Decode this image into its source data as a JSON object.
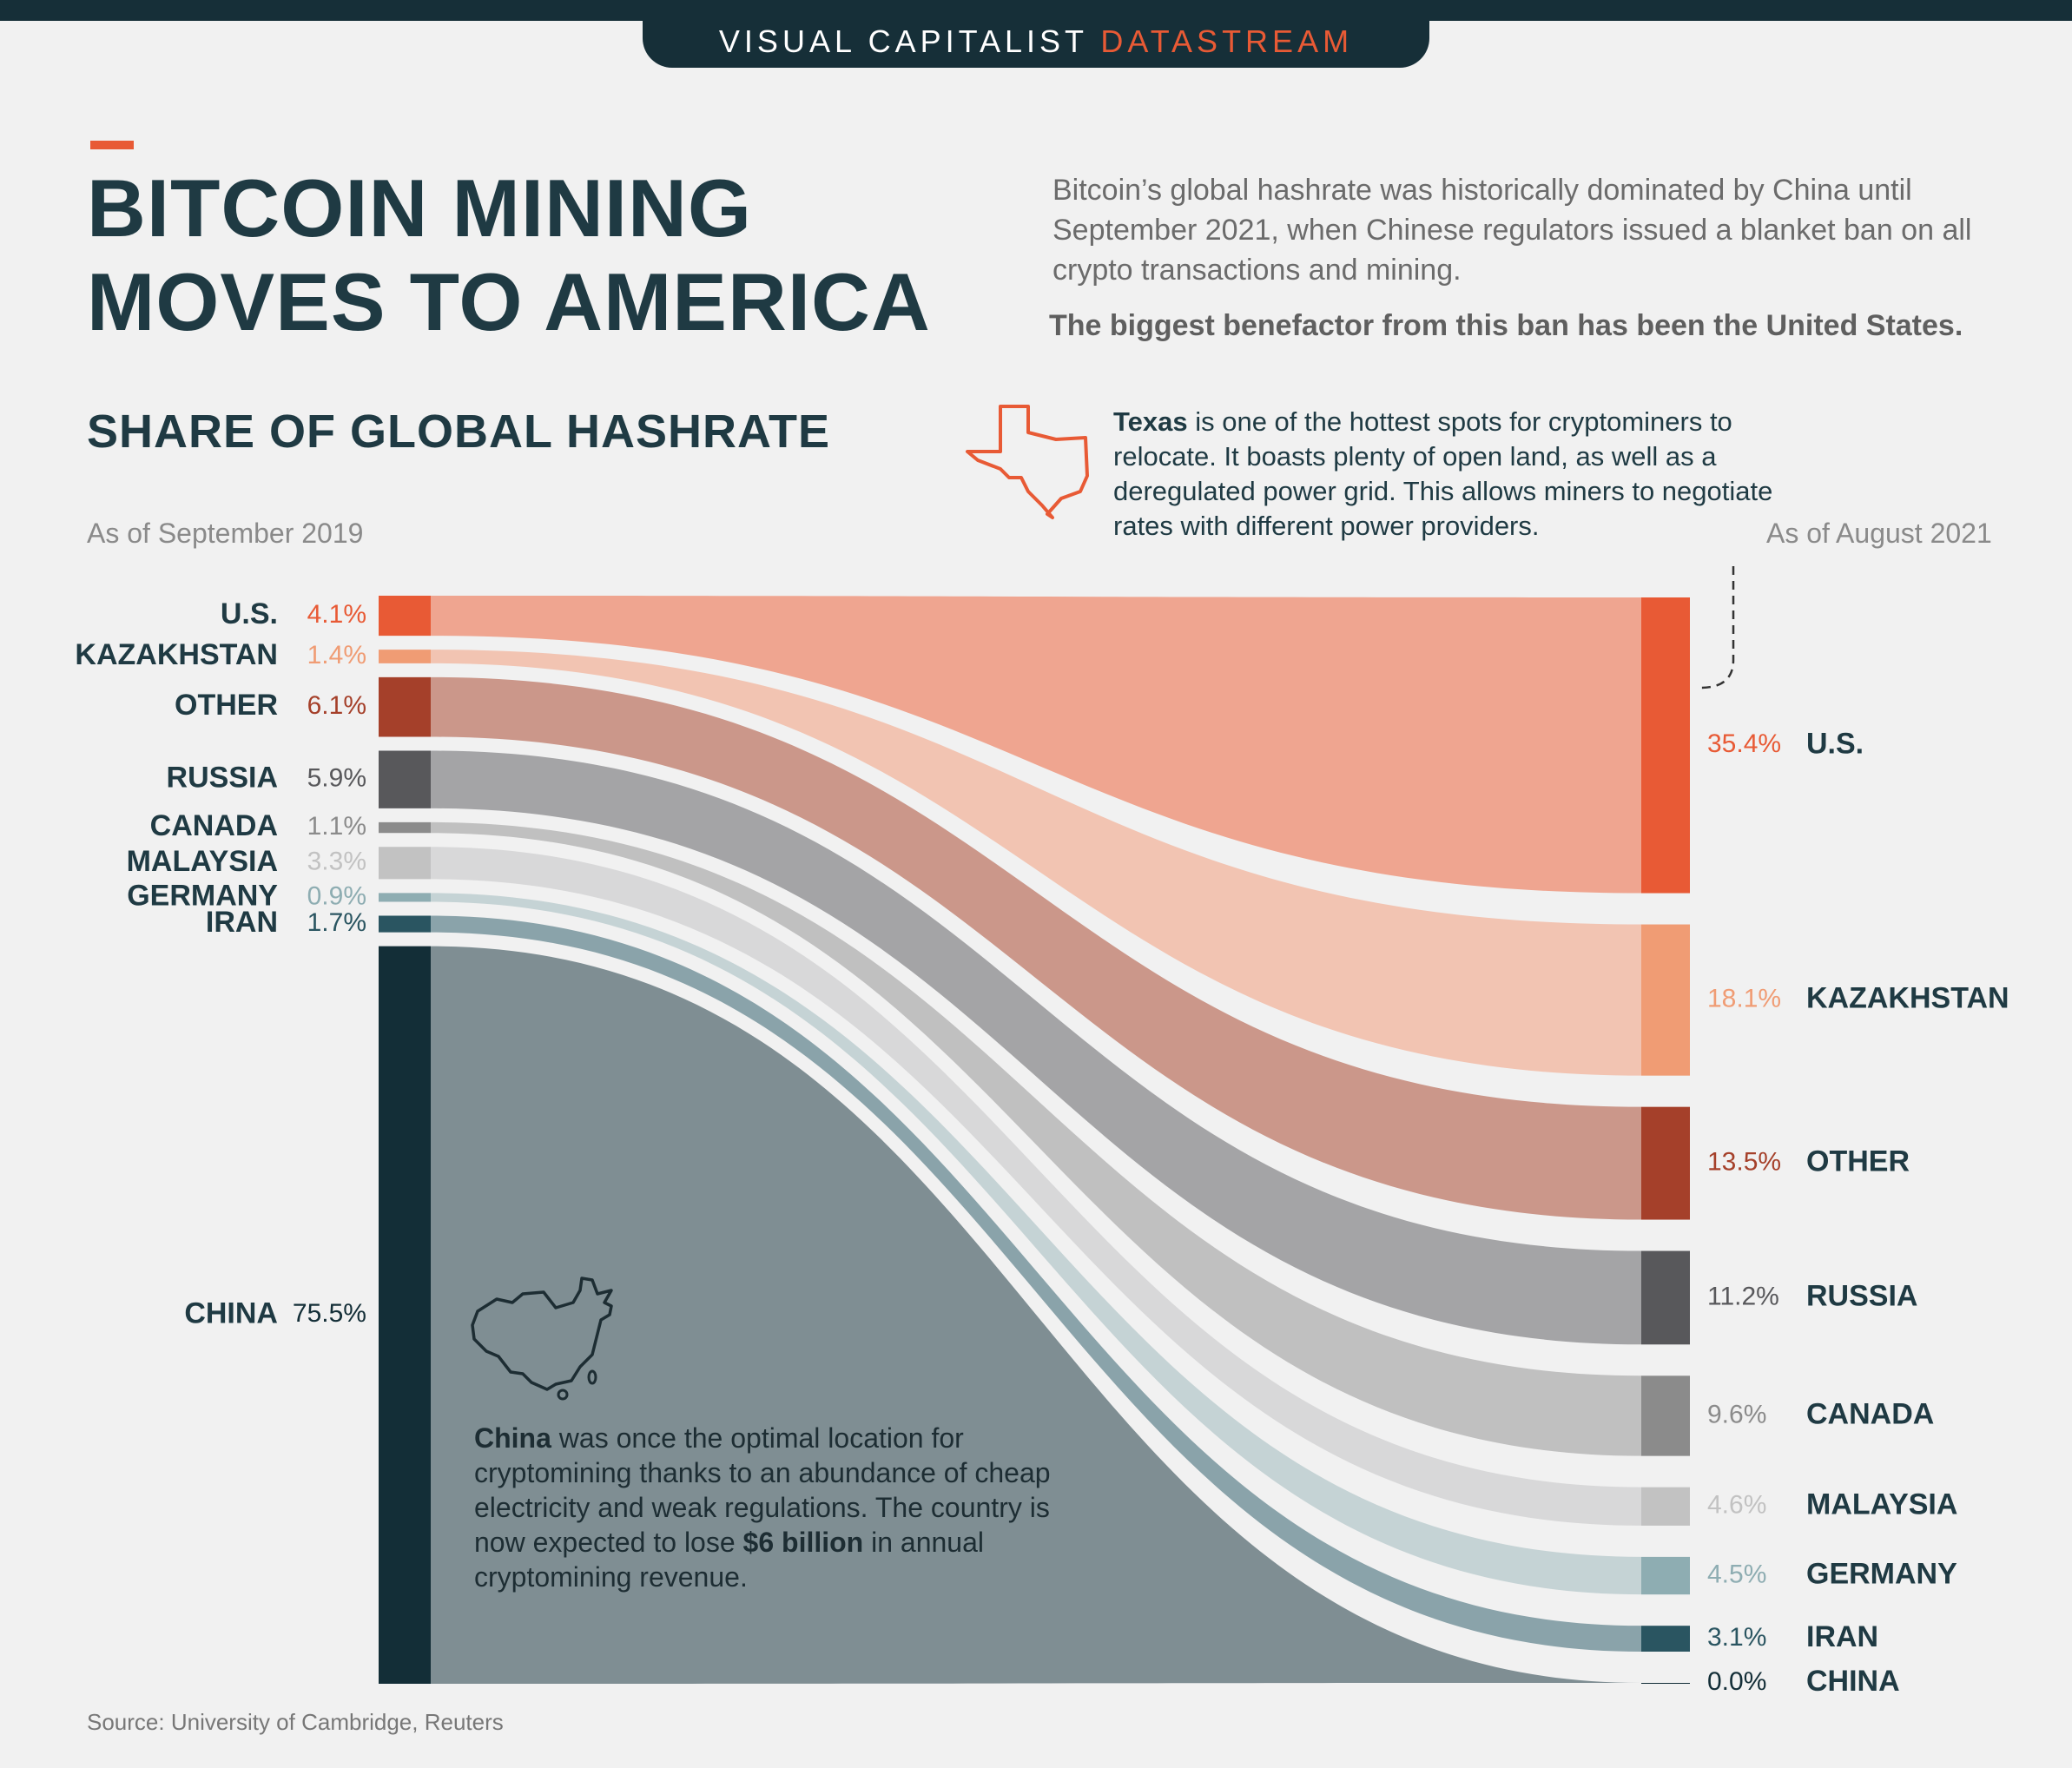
{
  "header": {
    "brand": "VISUAL CAPITALIST",
    "brand_accent": "DATASTREAM"
  },
  "title_line1": "BITCOIN MINING",
  "title_line2": "MOVES TO AMERICA",
  "intro": "Bitcoin’s global hashrate was historically dominated by China until September 2021, when Chinese regulators issued a blanket ban on all crypto transactions and mining.",
  "intro_bold": "The biggest benefactor from this ban has been the United States.",
  "annotations": {
    "texas_bold": "Texas",
    "texas_text": " is one of the hottest spots for cryptominers to relocate. It boasts plenty of open land, as well as a deregulated power grid. This allows miners to negotiate rates with different power providers.",
    "china_bold": "China",
    "china_text1": " was once the optimal location for cryptomining thanks to an abundance of cheap electricity and weak regulations. The country is now expected to lose ",
    "china_bold2": "$6 billion",
    "china_text2": " in annual cryptomining revenue."
  },
  "source": "Source: University of Cambridge, Reuters",
  "colors": {
    "background": "#f1f1f1",
    "navy": "#162f38",
    "accent": "#e85a35"
  },
  "icons": [
    "texas-outline-icon",
    "china-outline-icon"
  ],
  "chart_data": {
    "type": "sankey",
    "title": "SHARE OF GLOBAL HASHRATE",
    "left_label": "As of September 2019",
    "right_label": "As of August 2021",
    "unit": "%",
    "series": [
      {
        "name": "U.S.",
        "start": 4.1,
        "end": 35.4,
        "start_label": "4.1%",
        "end_label": "35.4%",
        "color": "#e85a35",
        "band_color": "#efa590"
      },
      {
        "name": "KAZAKHSTAN",
        "start": 1.4,
        "end": 18.1,
        "start_label": "1.4%",
        "end_label": "18.1%",
        "color": "#f09c74",
        "band_color": "#f2c4b2"
      },
      {
        "name": "OTHER",
        "start": 6.1,
        "end": 13.5,
        "start_label": "6.1%",
        "end_label": "13.5%",
        "color": "#a5402a",
        "band_color": "#cb978a"
      },
      {
        "name": "RUSSIA",
        "start": 5.9,
        "end": 11.2,
        "start_label": "5.9%",
        "end_label": "11.2%",
        "color": "#58585b",
        "band_color": "#a4a4a6"
      },
      {
        "name": "CANADA",
        "start": 1.1,
        "end": 9.6,
        "start_label": "1.1%",
        "end_label": "9.6%",
        "color": "#8b8b8b",
        "band_color": "#c0c0c0"
      },
      {
        "name": "MALAYSIA",
        "start": 3.3,
        "end": 4.6,
        "start_label": "3.3%",
        "end_label": "4.6%",
        "color": "#c2c2c2",
        "band_color": "#d8d8d9"
      },
      {
        "name": "GERMANY",
        "start": 0.9,
        "end": 4.5,
        "start_label": "0.9%",
        "end_label": "4.5%",
        "color": "#8eadb2",
        "band_color": "#c5d3d5"
      },
      {
        "name": "IRAN",
        "start": 1.7,
        "end": 3.1,
        "start_label": "1.7%",
        "end_label": "3.1%",
        "color": "#2a5561",
        "band_color": "#8aa3aa"
      },
      {
        "name": "CHINA",
        "start": 75.5,
        "end": 0.0,
        "start_label": "75.5%",
        "end_label": "0.0%",
        "color": "#132e37",
        "band_color": "#7f8e93"
      }
    ]
  }
}
